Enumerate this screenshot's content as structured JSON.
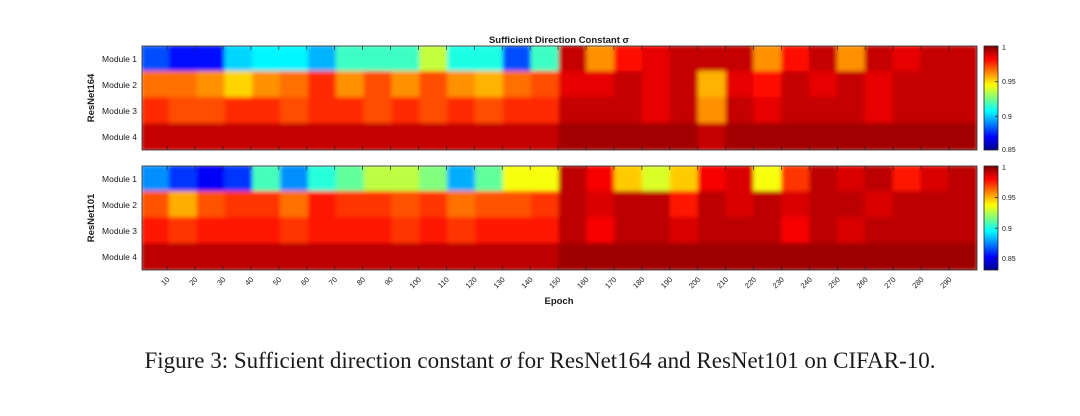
{
  "caption": {
    "prefix": "Figure 3: Sufficient direction constant ",
    "symbol": "σ",
    "suffix": " for ResNet164 and ResNet101 on CIFAR-10."
  },
  "chart_data": {
    "type": "heatmap",
    "title": "Sufficient Direction Constant σ",
    "xlabel": "Epoch",
    "x_tick_labels": [
      "10",
      "20",
      "30",
      "40",
      "50",
      "60",
      "70",
      "80",
      "90",
      "100",
      "110",
      "120",
      "130",
      "140",
      "150",
      "160",
      "170",
      "180",
      "190",
      "200",
      "210",
      "220",
      "230",
      "240",
      "250",
      "260",
      "270",
      "280",
      "290"
    ],
    "epochs": {
      "start": 1,
      "end": 300,
      "columns": 30
    },
    "colormap": "jet",
    "colormap_stops": [
      "#00008f",
      "#0000ff",
      "#00ffff",
      "#ffff00",
      "#ff0000",
      "#800000"
    ],
    "panels": [
      {
        "name": "ResNet164",
        "ylabel": "ResNet164",
        "rows": [
          "Module 1",
          "Module 2",
          "Module 3",
          "Module 4"
        ],
        "clim": [
          0.85,
          1
        ],
        "colorbar_ticks": [
          "0.85",
          "0.9",
          "0.95",
          "1"
        ],
        "values": [
          [
            0.88,
            0.87,
            0.87,
            0.9,
            0.905,
            0.905,
            0.895,
            0.915,
            0.915,
            0.915,
            0.935,
            0.91,
            0.91,
            0.88,
            0.915,
            0.99,
            0.96,
            0.98,
            0.985,
            0.99,
            0.99,
            0.99,
            0.96,
            0.98,
            0.99,
            0.96,
            0.99,
            0.985,
            0.99,
            0.99
          ],
          [
            0.965,
            0.965,
            0.96,
            0.95,
            0.96,
            0.965,
            0.975,
            0.96,
            0.97,
            0.96,
            0.97,
            0.96,
            0.955,
            0.965,
            0.97,
            0.985,
            0.985,
            0.99,
            0.985,
            0.99,
            0.955,
            0.985,
            0.98,
            0.99,
            0.985,
            0.99,
            0.985,
            0.99,
            0.99,
            0.99
          ],
          [
            0.975,
            0.97,
            0.97,
            0.975,
            0.975,
            0.97,
            0.975,
            0.975,
            0.97,
            0.975,
            0.97,
            0.975,
            0.97,
            0.975,
            0.975,
            0.99,
            0.99,
            0.99,
            0.985,
            0.99,
            0.96,
            0.99,
            0.985,
            0.99,
            0.99,
            0.99,
            0.985,
            0.99,
            0.99,
            0.99
          ],
          [
            0.99,
            0.99,
            0.99,
            0.99,
            0.99,
            0.99,
            0.99,
            0.99,
            0.99,
            0.99,
            0.99,
            0.99,
            0.99,
            0.99,
            0.99,
            0.995,
            0.995,
            0.995,
            0.995,
            0.995,
            0.99,
            0.995,
            0.995,
            0.995,
            0.995,
            0.995,
            0.995,
            0.995,
            0.995,
            0.995
          ]
        ]
      },
      {
        "name": "ResNet101",
        "ylabel": "ResNet101",
        "rows": [
          "Module 1",
          "Module 2",
          "Module 3",
          "Module 4"
        ],
        "clim": [
          0.83,
          1
        ],
        "colorbar_ticks": [
          "0.85",
          "0.9",
          "0.95",
          "1"
        ],
        "values": [
          [
            0.875,
            0.86,
            0.85,
            0.86,
            0.905,
            0.875,
            0.9,
            0.91,
            0.925,
            0.925,
            0.915,
            0.88,
            0.91,
            0.935,
            0.935,
            0.99,
            0.98,
            0.945,
            0.93,
            0.945,
            0.98,
            0.985,
            0.935,
            0.97,
            0.99,
            0.985,
            0.99,
            0.975,
            0.985,
            0.99
          ],
          [
            0.965,
            0.95,
            0.965,
            0.97,
            0.97,
            0.96,
            0.975,
            0.97,
            0.97,
            0.965,
            0.97,
            0.96,
            0.965,
            0.965,
            0.97,
            0.99,
            0.985,
            0.99,
            0.99,
            0.975,
            0.99,
            0.985,
            0.99,
            0.985,
            0.99,
            0.99,
            0.985,
            0.99,
            0.99,
            0.99
          ],
          [
            0.975,
            0.97,
            0.975,
            0.975,
            0.975,
            0.97,
            0.975,
            0.975,
            0.975,
            0.97,
            0.975,
            0.97,
            0.975,
            0.975,
            0.975,
            0.99,
            0.98,
            0.99,
            0.99,
            0.985,
            0.99,
            0.99,
            0.99,
            0.98,
            0.99,
            0.985,
            0.99,
            0.99,
            0.99,
            0.99
          ],
          [
            0.99,
            0.99,
            0.99,
            0.99,
            0.99,
            0.99,
            0.99,
            0.99,
            0.99,
            0.99,
            0.99,
            0.99,
            0.99,
            0.99,
            0.99,
            0.995,
            0.995,
            0.995,
            0.995,
            0.995,
            0.995,
            0.995,
            0.995,
            0.995,
            0.995,
            0.995,
            0.995,
            0.995,
            0.995,
            0.995
          ]
        ]
      }
    ]
  }
}
